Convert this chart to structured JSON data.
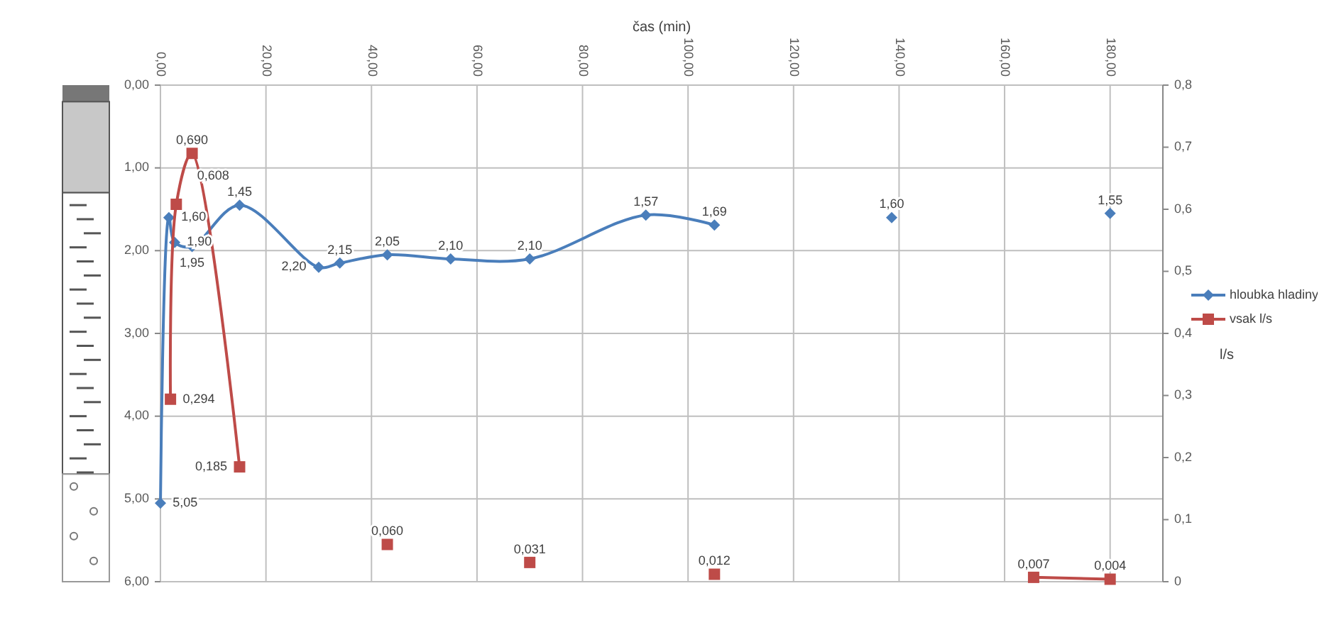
{
  "chart_data": {
    "type": "line",
    "xlabel": "čas (min)",
    "y2label": "l/s",
    "xlim": [
      0,
      190
    ],
    "xticks": [
      {
        "value": 0,
        "label": "0,00"
      },
      {
        "value": 20,
        "label": "20,00"
      },
      {
        "value": 40,
        "label": "40,00"
      },
      {
        "value": 60,
        "label": "60,00"
      },
      {
        "value": 80,
        "label": "80,00"
      },
      {
        "value": 100,
        "label": "100,00"
      },
      {
        "value": 120,
        "label": "120,00"
      },
      {
        "value": 140,
        "label": "140,00"
      },
      {
        "value": 160,
        "label": "160,00"
      },
      {
        "value": 180,
        "label": "180,00"
      }
    ],
    "ylim": [
      6,
      0
    ],
    "yticks": [
      {
        "value": 0,
        "label": "0,00"
      },
      {
        "value": 1,
        "label": "1,00"
      },
      {
        "value": 2,
        "label": "2,00"
      },
      {
        "value": 3,
        "label": "3,00"
      },
      {
        "value": 4,
        "label": "4,00"
      },
      {
        "value": 5,
        "label": "5,00"
      },
      {
        "value": 6,
        "label": "6,00"
      }
    ],
    "y2lim": [
      0,
      0.8
    ],
    "y2ticks": [
      0,
      {
        "value": 0.1,
        "label": "0,1"
      },
      {
        "value": 0.2,
        "label": "0,2"
      },
      {
        "value": 0.3,
        "label": "0,3"
      },
      {
        "value": 0.4,
        "label": "0,4"
      },
      {
        "value": 0.5,
        "label": "0,5"
      },
      {
        "value": 0.6,
        "label": "0,6"
      },
      {
        "value": 0.7,
        "label": "0,7"
      },
      {
        "value": 0.8,
        "label": "0,8"
      }
    ],
    "grid": true,
    "legend": "right",
    "line_style": "solid",
    "series": [
      {
        "name": "hloubka hladiny",
        "color": "#4a7ebb",
        "marker": "diamond",
        "x": [
          0,
          1.6,
          2.7,
          6,
          15,
          30,
          34,
          43,
          55,
          70,
          92,
          105
        ],
        "values": [
          5.05,
          1.6,
          1.9,
          1.95,
          1.45,
          2.2,
          2.15,
          2.05,
          2.1,
          2.1,
          1.57,
          1.69
        ],
        "value_labels": [
          "5,05",
          "1,60",
          "1,90",
          "1,95",
          "1,45",
          "2,20",
          "2,15",
          "2,05",
          "2,10",
          "2,10",
          "1,57",
          "1,69"
        ]
      },
      {
        "type": "scatter",
        "color": "#4a7ebb",
        "marker": "diamond",
        "x": [
          138.6,
          180
        ],
        "values": [
          1.6,
          1.55
        ],
        "value_labels": [
          "1,60",
          "1,55"
        ]
      },
      {
        "name": "vsak l/s",
        "color": "#be4b48",
        "marker": "square",
        "axis": "y2",
        "x": [
          1.9,
          3,
          6,
          15
        ],
        "values": [
          0.294,
          0.608,
          0.69,
          0.185
        ],
        "value_labels": [
          "0,294",
          "0,608",
          "0,690",
          "0,185"
        ]
      },
      {
        "type": "scatter",
        "color": "#be4b48",
        "marker": "square",
        "axis": "y2",
        "x": [
          43,
          70,
          105
        ],
        "values": [
          0.06,
          0.031,
          0.012
        ],
        "value_labels": [
          "0,060",
          "0,031",
          "0,012"
        ]
      },
      {
        "color": "#be4b48",
        "marker": "square",
        "axis": "y2",
        "x": [
          165.5,
          180
        ],
        "values": [
          0.007,
          0.004
        ],
        "value_labels": [
          "0,007",
          "0,004"
        ]
      }
    ]
  }
}
